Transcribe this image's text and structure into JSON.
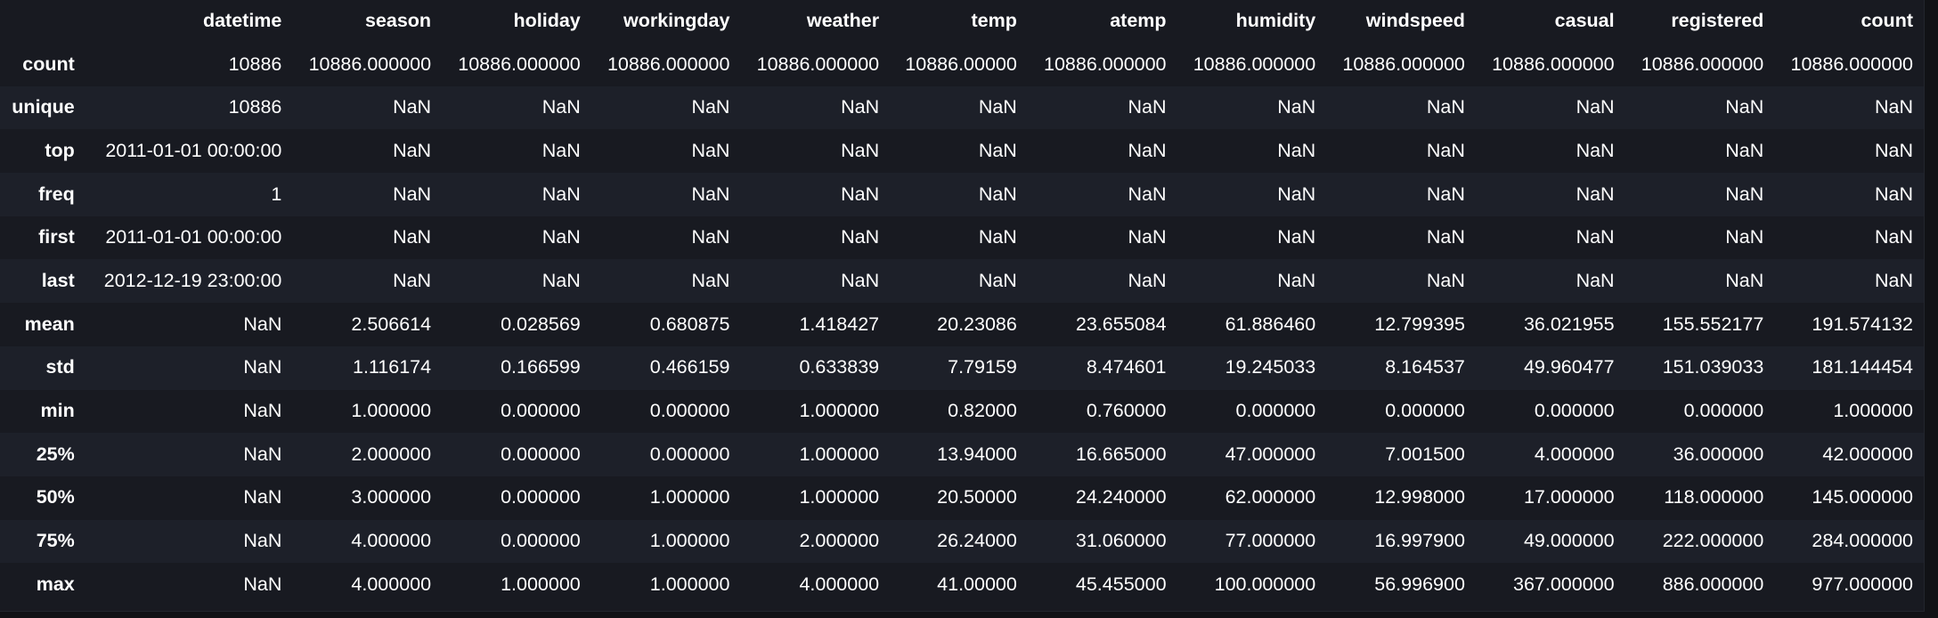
{
  "table": {
    "corner": "",
    "columns": [
      "datetime",
      "season",
      "holiday",
      "workingday",
      "weather",
      "temp",
      "atemp",
      "humidity",
      "windspeed",
      "casual",
      "registered",
      "count"
    ],
    "rows": [
      {
        "label": "count",
        "cells": [
          "10886",
          "10886.000000",
          "10886.000000",
          "10886.000000",
          "10886.000000",
          "10886.00000",
          "10886.000000",
          "10886.000000",
          "10886.000000",
          "10886.000000",
          "10886.000000",
          "10886.000000"
        ]
      },
      {
        "label": "unique",
        "cells": [
          "10886",
          "NaN",
          "NaN",
          "NaN",
          "NaN",
          "NaN",
          "NaN",
          "NaN",
          "NaN",
          "NaN",
          "NaN",
          "NaN"
        ]
      },
      {
        "label": "top",
        "cells": [
          "2011-01-01 00:00:00",
          "NaN",
          "NaN",
          "NaN",
          "NaN",
          "NaN",
          "NaN",
          "NaN",
          "NaN",
          "NaN",
          "NaN",
          "NaN"
        ]
      },
      {
        "label": "freq",
        "cells": [
          "1",
          "NaN",
          "NaN",
          "NaN",
          "NaN",
          "NaN",
          "NaN",
          "NaN",
          "NaN",
          "NaN",
          "NaN",
          "NaN"
        ]
      },
      {
        "label": "first",
        "cells": [
          "2011-01-01 00:00:00",
          "NaN",
          "NaN",
          "NaN",
          "NaN",
          "NaN",
          "NaN",
          "NaN",
          "NaN",
          "NaN",
          "NaN",
          "NaN"
        ]
      },
      {
        "label": "last",
        "cells": [
          "2012-12-19 23:00:00",
          "NaN",
          "NaN",
          "NaN",
          "NaN",
          "NaN",
          "NaN",
          "NaN",
          "NaN",
          "NaN",
          "NaN",
          "NaN"
        ]
      },
      {
        "label": "mean",
        "cells": [
          "NaN",
          "2.506614",
          "0.028569",
          "0.680875",
          "1.418427",
          "20.23086",
          "23.655084",
          "61.886460",
          "12.799395",
          "36.021955",
          "155.552177",
          "191.574132"
        ]
      },
      {
        "label": "std",
        "cells": [
          "NaN",
          "1.116174",
          "0.166599",
          "0.466159",
          "0.633839",
          "7.79159",
          "8.474601",
          "19.245033",
          "8.164537",
          "49.960477",
          "151.039033",
          "181.144454"
        ]
      },
      {
        "label": "min",
        "cells": [
          "NaN",
          "1.000000",
          "0.000000",
          "0.000000",
          "1.000000",
          "0.82000",
          "0.760000",
          "0.000000",
          "0.000000",
          "0.000000",
          "0.000000",
          "1.000000"
        ]
      },
      {
        "label": "25%",
        "cells": [
          "NaN",
          "2.000000",
          "0.000000",
          "0.000000",
          "1.000000",
          "13.94000",
          "16.665000",
          "47.000000",
          "7.001500",
          "4.000000",
          "36.000000",
          "42.000000"
        ]
      },
      {
        "label": "50%",
        "cells": [
          "NaN",
          "3.000000",
          "0.000000",
          "1.000000",
          "1.000000",
          "20.50000",
          "24.240000",
          "62.000000",
          "12.998000",
          "17.000000",
          "118.000000",
          "145.000000"
        ]
      },
      {
        "label": "75%",
        "cells": [
          "NaN",
          "4.000000",
          "0.000000",
          "1.000000",
          "2.000000",
          "26.24000",
          "31.060000",
          "77.000000",
          "16.997900",
          "49.000000",
          "222.000000",
          "284.000000"
        ]
      },
      {
        "label": "max",
        "cells": [
          "NaN",
          "4.000000",
          "1.000000",
          "1.000000",
          "4.000000",
          "41.00000",
          "45.455000",
          "100.000000",
          "56.996900",
          "367.000000",
          "886.000000",
          "977.000000"
        ]
      }
    ]
  },
  "colors": {
    "background": "#181a21",
    "stripe": "#1d2029",
    "text": "#ffffff"
  }
}
